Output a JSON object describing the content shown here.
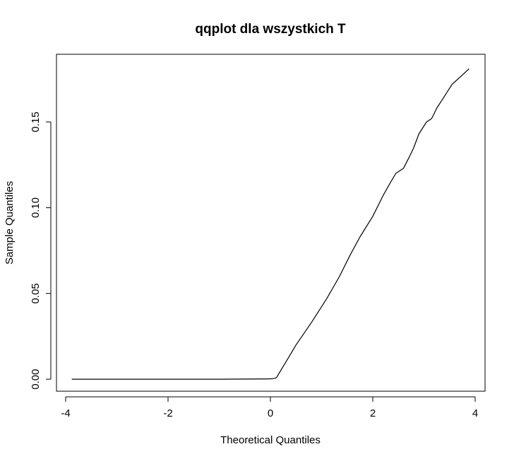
{
  "chart_data": {
    "type": "line",
    "title": "qqplot dla wszystkich T",
    "xlabel": "Theoretical Quantiles",
    "ylabel": "Sample Quantiles",
    "xlim": [
      -4,
      4
    ],
    "ylim": [
      0,
      0.18
    ],
    "xticks": [
      -4,
      -2,
      0,
      2,
      4
    ],
    "xtick_labels": [
      "-4",
      "-2",
      "0",
      "2",
      "4"
    ],
    "yticks": [
      0.0,
      0.05,
      0.1,
      0.15
    ],
    "ytick_labels": [
      "0.00",
      "0.05",
      "0.10",
      "0.15"
    ],
    "grid": false,
    "series": [
      {
        "color": "#000000",
        "points": [
          [
            -3.88,
            0.0
          ],
          [
            -2.0,
            0.0
          ],
          [
            -1.0,
            0.0
          ],
          [
            0.0,
            0.0002
          ],
          [
            0.08,
            0.0005
          ],
          [
            0.12,
            0.001
          ],
          [
            0.18,
            0.004
          ],
          [
            0.3,
            0.01
          ],
          [
            0.5,
            0.02
          ],
          [
            0.8,
            0.033
          ],
          [
            1.1,
            0.047
          ],
          [
            1.35,
            0.06
          ],
          [
            1.55,
            0.072
          ],
          [
            1.75,
            0.083
          ],
          [
            2.0,
            0.095
          ],
          [
            2.2,
            0.107
          ],
          [
            2.35,
            0.115
          ],
          [
            2.45,
            0.12
          ],
          [
            2.6,
            0.123
          ],
          [
            2.72,
            0.13
          ],
          [
            2.8,
            0.135
          ],
          [
            2.9,
            0.143
          ],
          [
            3.05,
            0.15
          ],
          [
            3.15,
            0.152
          ],
          [
            3.25,
            0.158
          ],
          [
            3.38,
            0.164
          ],
          [
            3.55,
            0.172
          ],
          [
            3.7,
            0.176
          ],
          [
            3.88,
            0.181
          ]
        ]
      }
    ]
  }
}
